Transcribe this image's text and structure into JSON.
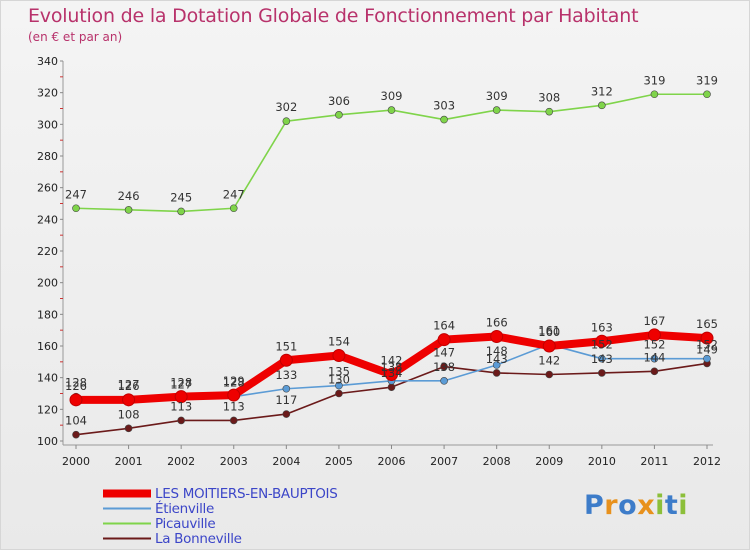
{
  "header": {
    "title": "Evolution de la Dotation Globale de Fonctionnement par Habitant",
    "subtitle": "(en € et par an)"
  },
  "chart_data": {
    "type": "line",
    "title": "Evolution de la Dotation Globale de Fonctionnement par Habitant",
    "subtitle": "(en € et par an)",
    "xlabel": "",
    "ylabel": "",
    "ylim": [
      100,
      340
    ],
    "yticks": [
      100,
      120,
      140,
      160,
      180,
      200,
      220,
      240,
      260,
      280,
      300,
      320,
      340
    ],
    "grid": false,
    "legend_position": "bottom-left",
    "x": [
      "2000",
      "2001",
      "2002",
      "2003",
      "2004",
      "2005",
      "2006",
      "2007",
      "2008",
      "2009",
      "2010",
      "2011",
      "2012"
    ],
    "series": [
      {
        "name": "LES MOITIERS-EN-BAUPTOIS",
        "color": "#ee0000",
        "values": [
          126,
          126,
          128,
          129,
          151,
          154,
          142,
          164,
          166,
          160,
          163,
          167,
          165
        ]
      },
      {
        "name": "Étienville",
        "color": "#5b9bd5",
        "values": [
          128,
          127,
          127,
          128,
          133,
          135,
          138,
          138,
          148,
          161,
          152,
          152,
          152
        ]
      },
      {
        "name": "Picauville",
        "color": "#7fd44a",
        "values": [
          247,
          246,
          245,
          247,
          302,
          306,
          309,
          303,
          309,
          308,
          312,
          319,
          319
        ]
      },
      {
        "name": "La Bonneville",
        "color": "#6b1a1a",
        "values": [
          104,
          108,
          113,
          113,
          117,
          130,
          134,
          147,
          143,
          142,
          143,
          144,
          149
        ]
      }
    ]
  },
  "logo": {
    "letters": [
      "P",
      "r",
      "o",
      "x",
      "i",
      "t",
      "i"
    ],
    "colors": [
      "#3d7cc9",
      "#e8911c",
      "#3d7cc9",
      "#e8911c",
      "#8cbf3a",
      "#3d7cc9",
      "#8cbf3a"
    ]
  }
}
